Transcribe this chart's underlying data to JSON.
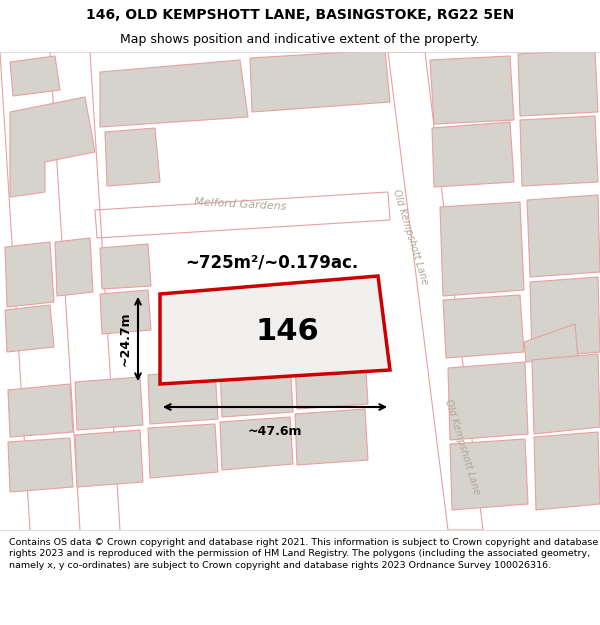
{
  "title_line1": "146, OLD KEMPSHOTT LANE, BASINGSTOKE, RG22 5EN",
  "title_line2": "Map shows position and indicative extent of the property.",
  "footer_text": "Contains OS data © Crown copyright and database right 2021. This information is subject to Crown copyright and database rights 2023 and is reproduced with the permission of HM Land Registry. The polygons (including the associated geometry, namely x, y co-ordinates) are subject to Crown copyright and database rights 2023 Ordnance Survey 100026316.",
  "map_bg": "#f2f0ee",
  "title_bg": "#ffffff",
  "footer_bg": "#ffffff",
  "road_stroke": "#e8a0a0",
  "road_fill": "#ffffff",
  "building_fill": "#d6d2cc",
  "building_stroke": "#e8a0a0",
  "highlight_stroke": "#cc0000",
  "highlight_fill": "#f2f0ee",
  "area_label": "~725m²/~0.179ac.",
  "number_label": "146",
  "width_label": "~47.6m",
  "height_label": "~24.7m",
  "street_label_melford": "Melford Gardens",
  "street_label_old1": "Old Kempshott Lane",
  "street_label_old2": "Old Kempshott Lane",
  "title_fontsize": 10,
  "subtitle_fontsize": 9,
  "footer_fontsize": 6.8
}
